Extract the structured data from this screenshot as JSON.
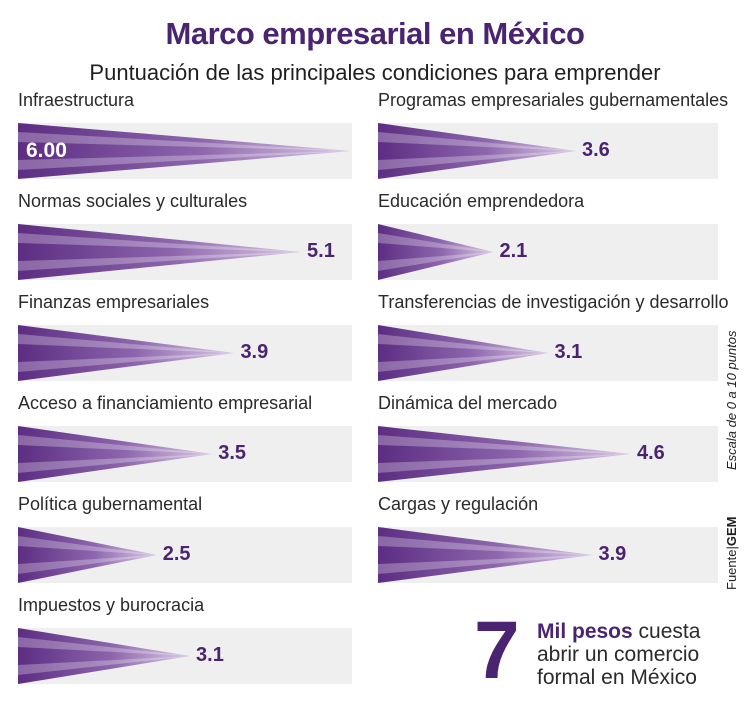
{
  "header": {
    "title": "Marco empresarial en México",
    "subtitle": "Puntuación de las principales condiciones para emprender"
  },
  "side": {
    "scale_note": "Escala de 0 a 10 puntos",
    "source_label": "Fuente",
    "source_name": "GEM"
  },
  "note": {
    "number": "7",
    "highlight": "Mil pesos",
    "text": "cuesta abrir un comercio formal en México"
  },
  "colors": {
    "accent": "#4a2470",
    "bar_dark": "#5c2d82",
    "bar_light": "#d6c3e3",
    "track": "#efefef"
  },
  "chart_data": {
    "type": "bar",
    "title": "Marco empresarial en México",
    "subtitle": "Puntuación de las principales condiciones para emprender",
    "xlim": [
      0,
      10
    ],
    "unit_note": "Escala de 0 a 10 puntos",
    "items": [
      {
        "label": "Infraestructura",
        "value": 6.0,
        "display": "6.00"
      },
      {
        "label": "Normas sociales y culturales",
        "value": 5.1,
        "display": "5.1"
      },
      {
        "label": "Finanzas empresariales",
        "value": 3.9,
        "display": "3.9"
      },
      {
        "label": "Acceso a financiamiento empresarial",
        "value": 3.5,
        "display": "3.5"
      },
      {
        "label": "Política gubernamental",
        "value": 2.5,
        "display": "2.5"
      },
      {
        "label": "Impuestos y burocracia",
        "value": 3.1,
        "display": "3.1"
      },
      {
        "label": "Programas empresariales gubernamentales",
        "value": 3.6,
        "display": "3.6"
      },
      {
        "label": "Educación emprendedora",
        "value": 2.1,
        "display": "2.1"
      },
      {
        "label": "Transferencias de investigación y desarrollo",
        "value": 3.1,
        "display": "3.1"
      },
      {
        "label": "Dinámica del mercado",
        "value": 4.6,
        "display": "4.6"
      },
      {
        "label": "Cargas y regulación",
        "value": 3.9,
        "display": "3.9"
      }
    ]
  }
}
